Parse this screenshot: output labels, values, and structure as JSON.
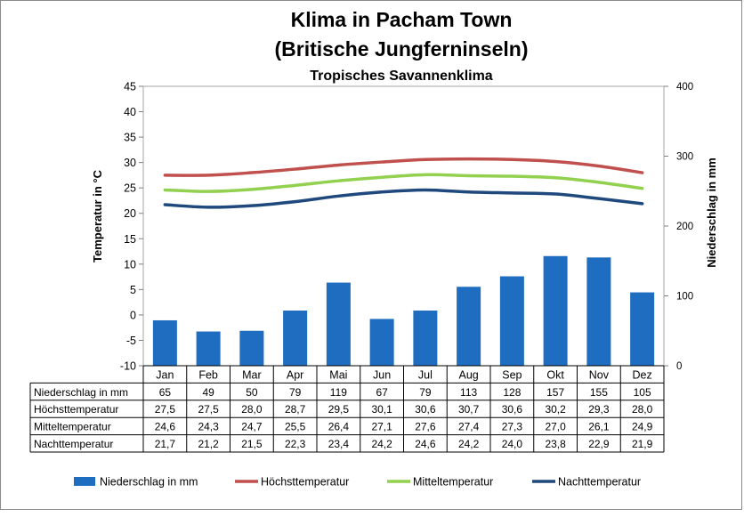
{
  "chart_data": {
    "type": "bar+line",
    "title": "Klima in Pacham Town",
    "title_line2": "(Britische Jungferninseln)",
    "subtitle": "Tropisches Savannenklima",
    "ylabel_left": "Temperatur in °C",
    "ylabel_right": "Niederschlag in mm",
    "ylim_left": [
      -10,
      45
    ],
    "yticks_left": [
      "45",
      "40",
      "35",
      "30",
      "25",
      "20",
      "15",
      "10",
      "5",
      "0",
      "-5",
      "-10"
    ],
    "ylim_right": [
      0,
      400
    ],
    "yticks_right": [
      "400",
      "300",
      "200",
      "100",
      "0"
    ],
    "categories": [
      "Jan",
      "Feb",
      "Mar",
      "Apr",
      "Mai",
      "Jun",
      "Jul",
      "Aug",
      "Sep",
      "Okt",
      "Nov",
      "Dez"
    ],
    "legend_position": "bottom",
    "series": [
      {
        "name": "Niederschlag in mm",
        "kind": "bar",
        "axis": "right",
        "color": "#1f6dc0",
        "values": [
          65,
          49,
          50,
          79,
          119,
          67,
          79,
          113,
          128,
          157,
          155,
          105
        ],
        "labels": [
          "65",
          "49",
          "50",
          "79",
          "119",
          "67",
          "79",
          "113",
          "128",
          "157",
          "155",
          "105"
        ]
      },
      {
        "name": "Höchsttemperatur",
        "kind": "line",
        "axis": "left",
        "color": "#c0504d",
        "values": [
          27.5,
          27.5,
          28.0,
          28.7,
          29.5,
          30.1,
          30.6,
          30.7,
          30.6,
          30.2,
          29.3,
          28.0
        ],
        "labels": [
          "27,5",
          "27,5",
          "28,0",
          "28,7",
          "29,5",
          "30,1",
          "30,6",
          "30,7",
          "30,6",
          "30,2",
          "29,3",
          "28,0"
        ]
      },
      {
        "name": "Mitteltemperatur",
        "kind": "line",
        "axis": "left",
        "color": "#92d050",
        "values": [
          24.6,
          24.3,
          24.7,
          25.5,
          26.4,
          27.1,
          27.6,
          27.4,
          27.3,
          27.0,
          26.1,
          24.9
        ],
        "labels": [
          "24,6",
          "24,3",
          "24,7",
          "25,5",
          "26,4",
          "27,1",
          "27,6",
          "27,4",
          "27,3",
          "27,0",
          "26,1",
          "24,9"
        ]
      },
      {
        "name": "Nachttemperatur",
        "kind": "line",
        "axis": "left",
        "color": "#1f497d",
        "values": [
          21.7,
          21.2,
          21.5,
          22.3,
          23.4,
          24.2,
          24.6,
          24.2,
          24.0,
          23.8,
          22.9,
          21.9
        ],
        "labels": [
          "21,7",
          "21,2",
          "21,5",
          "22,3",
          "23,4",
          "24,2",
          "24,6",
          "24,2",
          "24,0",
          "23,8",
          "22,9",
          "21,9"
        ]
      }
    ]
  }
}
